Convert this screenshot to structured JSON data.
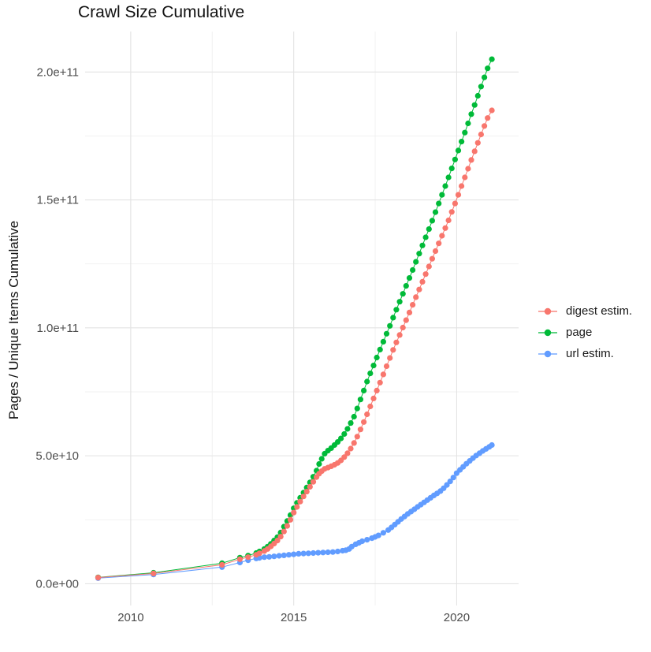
{
  "chart_data": {
    "type": "scatter",
    "title": "Crawl Size Cumulative",
    "xlabel": "",
    "ylabel": "Pages / Unique Items Cumulative",
    "grid": "major+minor",
    "legend_position": "right",
    "x_axis": {
      "domain": [
        2008.6,
        2021.9
      ],
      "ticks": [
        {
          "value": 2010,
          "label": "2010"
        },
        {
          "value": 2015,
          "label": "2015"
        },
        {
          "value": 2020,
          "label": "2020"
        }
      ],
      "minor": [
        2012.5,
        2017.5
      ]
    },
    "y_axis": {
      "domain": [
        -8500000000.0,
        215800000000.0
      ],
      "ticks": [
        {
          "value": 0,
          "label": "0.0e+00"
        },
        {
          "value": 50000000000.0,
          "label": "5.0e+10"
        },
        {
          "value": 100000000000.0,
          "label": "1.0e+11"
        },
        {
          "value": 150000000000.0,
          "label": "1.5e+11"
        },
        {
          "value": 200000000000.0,
          "label": "2.0e+11"
        }
      ],
      "minor": [
        25000000000.0,
        75000000000.0,
        125000000000.0,
        175000000000.0
      ]
    },
    "colors": {
      "grid_major": "#e3e3e3",
      "grid_minor": "#f0f0f0",
      "axis_text": "#4d4d4d",
      "title_text": "#111111"
    },
    "draw_order": [
      1,
      2,
      0
    ],
    "series": [
      {
        "name": "digest estim.",
        "color": "#F8766D",
        "points": [
          [
            2009.0,
            2400000000.0
          ],
          [
            2010.7,
            4000000000.0
          ],
          [
            2012.8,
            7400000000.0
          ],
          [
            2013.35,
            9600000000.0
          ],
          [
            2013.6,
            10400000000.0
          ],
          [
            2013.85,
            11300000000.0
          ],
          [
            2013.95,
            11900000000.0
          ],
          [
            2014.1,
            12800000000.0
          ],
          [
            2014.2,
            13600000000.0
          ],
          [
            2014.3,
            14600000000.0
          ],
          [
            2014.4,
            15700000000.0
          ],
          [
            2014.5,
            16900000000.0
          ],
          [
            2014.6,
            18400000000.0
          ],
          [
            2014.7,
            20400000000.0
          ],
          [
            2014.8,
            22600000000.0
          ],
          [
            2014.9,
            25000000000.0
          ],
          [
            2015.0,
            27800000000.0
          ],
          [
            2015.1,
            30000000000.0
          ],
          [
            2015.2,
            32100000000.0
          ],
          [
            2015.3,
            34100000000.0
          ],
          [
            2015.4,
            36000000000.0
          ],
          [
            2015.5,
            37900000000.0
          ],
          [
            2015.6,
            39800000000.0
          ],
          [
            2015.7,
            41700000000.0
          ],
          [
            2015.78,
            43000000000.0
          ],
          [
            2015.86,
            44000000000.0
          ],
          [
            2015.95,
            44900000000.0
          ],
          [
            2016.05,
            45400000000.0
          ],
          [
            2016.15,
            45900000000.0
          ],
          [
            2016.25,
            46500000000.0
          ],
          [
            2016.35,
            47200000000.0
          ],
          [
            2016.45,
            48200000000.0
          ],
          [
            2016.55,
            49500000000.0
          ],
          [
            2016.65,
            51000000000.0
          ],
          [
            2016.75,
            52800000000.0
          ],
          [
            2016.85,
            55000000000.0
          ],
          [
            2016.95,
            57500000000.0
          ],
          [
            2017.05,
            60300000000.0
          ],
          [
            2017.15,
            63200000000.0
          ],
          [
            2017.25,
            66200000000.0
          ],
          [
            2017.35,
            69300000000.0
          ],
          [
            2017.45,
            72400000000.0
          ],
          [
            2017.55,
            75500000000.0
          ],
          [
            2017.65,
            78600000000.0
          ],
          [
            2017.75,
            81800000000.0
          ],
          [
            2017.85,
            85000000000.0
          ],
          [
            2017.95,
            88200000000.0
          ],
          [
            2018.05,
            91400000000.0
          ],
          [
            2018.15,
            94300000000.0
          ],
          [
            2018.25,
            97200000000.0
          ],
          [
            2018.35,
            100100000000.0
          ],
          [
            2018.45,
            103000000000.0
          ],
          [
            2018.55,
            106000000000.0
          ],
          [
            2018.65,
            109000000000.0
          ],
          [
            2018.75,
            112000000000.0
          ],
          [
            2018.85,
            115000000000.0
          ],
          [
            2018.95,
            118000000000.0
          ],
          [
            2019.05,
            121000000000.0
          ],
          [
            2019.15,
            124000000000.0
          ],
          [
            2019.25,
            127000000000.0
          ],
          [
            2019.35,
            130000000000.0
          ],
          [
            2019.45,
            133000000000.0
          ],
          [
            2019.55,
            136000000000.0
          ],
          [
            2019.65,
            139000000000.0
          ],
          [
            2019.75,
            142000000000.0
          ],
          [
            2019.85,
            145300000000.0
          ],
          [
            2019.95,
            148600000000.0
          ],
          [
            2020.05,
            152000000000.0
          ],
          [
            2020.15,
            155400000000.0
          ],
          [
            2020.25,
            158800000000.0
          ],
          [
            2020.35,
            162200000000.0
          ],
          [
            2020.45,
            165600000000.0
          ],
          [
            2020.55,
            169000000000.0
          ],
          [
            2020.65,
            172300000000.0
          ],
          [
            2020.75,
            175600000000.0
          ],
          [
            2020.85,
            178900000000.0
          ],
          [
            2020.95,
            182000000000.0
          ],
          [
            2021.08,
            185000000000.0
          ]
        ]
      },
      {
        "name": "page",
        "color": "#00BA38",
        "points": [
          [
            2009.0,
            2500000000.0
          ],
          [
            2010.7,
            4300000000.0
          ],
          [
            2012.8,
            8000000000.0
          ],
          [
            2013.35,
            10200000000.0
          ],
          [
            2013.6,
            11000000000.0
          ],
          [
            2013.85,
            12000000000.0
          ],
          [
            2013.95,
            12600000000.0
          ],
          [
            2014.1,
            13600000000.0
          ],
          [
            2014.2,
            14500000000.0
          ],
          [
            2014.3,
            15600000000.0
          ],
          [
            2014.4,
            16900000000.0
          ],
          [
            2014.5,
            18200000000.0
          ],
          [
            2014.6,
            20000000000.0
          ],
          [
            2014.7,
            22300000000.0
          ],
          [
            2014.8,
            24500000000.0
          ],
          [
            2014.9,
            26800000000.0
          ],
          [
            2015.0,
            29500000000.0
          ],
          [
            2015.1,
            31600000000.0
          ],
          [
            2015.2,
            33600000000.0
          ],
          [
            2015.3,
            35600000000.0
          ],
          [
            2015.4,
            37600000000.0
          ],
          [
            2015.5,
            39600000000.0
          ],
          [
            2015.6,
            41800000000.0
          ],
          [
            2015.7,
            44200000000.0
          ],
          [
            2015.78,
            46800000000.0
          ],
          [
            2015.86,
            48800000000.0
          ],
          [
            2015.95,
            50800000000.0
          ],
          [
            2016.05,
            52000000000.0
          ],
          [
            2016.15,
            53000000000.0
          ],
          [
            2016.25,
            54200000000.0
          ],
          [
            2016.35,
            55400000000.0
          ],
          [
            2016.45,
            56800000000.0
          ],
          [
            2016.55,
            58500000000.0
          ],
          [
            2016.65,
            60500000000.0
          ],
          [
            2016.75,
            62800000000.0
          ],
          [
            2016.85,
            65300000000.0
          ],
          [
            2016.95,
            68500000000.0
          ],
          [
            2017.05,
            72000000000.0
          ],
          [
            2017.15,
            75500000000.0
          ],
          [
            2017.25,
            79000000000.0
          ],
          [
            2017.35,
            82200000000.0
          ],
          [
            2017.45,
            85300000000.0
          ],
          [
            2017.55,
            88400000000.0
          ],
          [
            2017.65,
            91500000000.0
          ],
          [
            2017.75,
            94600000000.0
          ],
          [
            2017.85,
            97700000000.0
          ],
          [
            2017.95,
            100800000000.0
          ],
          [
            2018.05,
            104000000000.0
          ],
          [
            2018.15,
            107100000000.0
          ],
          [
            2018.25,
            110200000000.0
          ],
          [
            2018.35,
            113300000000.0
          ],
          [
            2018.45,
            116400000000.0
          ],
          [
            2018.55,
            119500000000.0
          ],
          [
            2018.65,
            122600000000.0
          ],
          [
            2018.75,
            125800000000.0
          ],
          [
            2018.85,
            129000000000.0
          ],
          [
            2018.95,
            132200000000.0
          ],
          [
            2019.05,
            135400000000.0
          ],
          [
            2019.15,
            138600000000.0
          ],
          [
            2019.25,
            141900000000.0
          ],
          [
            2019.35,
            145200000000.0
          ],
          [
            2019.45,
            148600000000.0
          ],
          [
            2019.55,
            152000000000.0
          ],
          [
            2019.65,
            155400000000.0
          ],
          [
            2019.75,
            158800000000.0
          ],
          [
            2019.85,
            162300000000.0
          ],
          [
            2019.95,
            165800000000.0
          ],
          [
            2020.05,
            169300000000.0
          ],
          [
            2020.15,
            172800000000.0
          ],
          [
            2020.25,
            176300000000.0
          ],
          [
            2020.35,
            179900000000.0
          ],
          [
            2020.45,
            183500000000.0
          ],
          [
            2020.55,
            187100000000.0
          ],
          [
            2020.65,
            190700000000.0
          ],
          [
            2020.75,
            194300000000.0
          ],
          [
            2020.85,
            197900000000.0
          ],
          [
            2020.95,
            201400000000.0
          ],
          [
            2021.08,
            205000000000.0
          ]
        ]
      },
      {
        "name": "url estim.",
        "color": "#619CFF",
        "points": [
          [
            2009.0,
            2200000000.0
          ],
          [
            2010.7,
            3600000000.0
          ],
          [
            2012.8,
            6500000000.0
          ],
          [
            2013.35,
            8300000000.0
          ],
          [
            2013.6,
            9200000000.0
          ],
          [
            2013.85,
            9900000000.0
          ],
          [
            2013.95,
            10100000000.0
          ],
          [
            2014.1,
            10400000000.0
          ],
          [
            2014.25,
            10500000000.0
          ],
          [
            2014.4,
            10700000000.0
          ],
          [
            2014.55,
            10900000000.0
          ],
          [
            2014.7,
            11100000000.0
          ],
          [
            2014.85,
            11300000000.0
          ],
          [
            2015.0,
            11500000000.0
          ],
          [
            2015.15,
            11700000000.0
          ],
          [
            2015.3,
            11800000000.0
          ],
          [
            2015.45,
            11900000000.0
          ],
          [
            2015.6,
            12000000000.0
          ],
          [
            2015.75,
            12100000000.0
          ],
          [
            2015.9,
            12200000000.0
          ],
          [
            2016.05,
            12300000000.0
          ],
          [
            2016.2,
            12400000000.0
          ],
          [
            2016.35,
            12600000000.0
          ],
          [
            2016.5,
            12900000000.0
          ],
          [
            2016.6,
            13100000000.0
          ],
          [
            2016.7,
            13600000000.0
          ],
          [
            2016.78,
            14500000000.0
          ],
          [
            2016.9,
            15400000000.0
          ],
          [
            2017.0,
            16000000000.0
          ],
          [
            2017.1,
            16600000000.0
          ],
          [
            2017.25,
            17200000000.0
          ],
          [
            2017.4,
            17800000000.0
          ],
          [
            2017.5,
            18300000000.0
          ],
          [
            2017.6,
            18900000000.0
          ],
          [
            2017.75,
            19900000000.0
          ],
          [
            2017.9,
            21000000000.0
          ],
          [
            2018.0,
            22000000000.0
          ],
          [
            2018.1,
            23100000000.0
          ],
          [
            2018.2,
            24200000000.0
          ],
          [
            2018.3,
            25300000000.0
          ],
          [
            2018.4,
            26300000000.0
          ],
          [
            2018.5,
            27300000000.0
          ],
          [
            2018.6,
            28200000000.0
          ],
          [
            2018.7,
            29100000000.0
          ],
          [
            2018.8,
            30000000000.0
          ],
          [
            2018.9,
            30900000000.0
          ],
          [
            2019.0,
            31800000000.0
          ],
          [
            2019.1,
            32700000000.0
          ],
          [
            2019.2,
            33600000000.0
          ],
          [
            2019.3,
            34500000000.0
          ],
          [
            2019.4,
            35300000000.0
          ],
          [
            2019.5,
            36200000000.0
          ],
          [
            2019.6,
            37300000000.0
          ],
          [
            2019.7,
            38600000000.0
          ],
          [
            2019.8,
            40000000000.0
          ],
          [
            2019.9,
            41500000000.0
          ],
          [
            2020.0,
            43200000000.0
          ],
          [
            2020.1,
            44500000000.0
          ],
          [
            2020.2,
            45700000000.0
          ],
          [
            2020.3,
            46900000000.0
          ],
          [
            2020.4,
            48000000000.0
          ],
          [
            2020.5,
            49100000000.0
          ],
          [
            2020.6,
            50100000000.0
          ],
          [
            2020.7,
            51000000000.0
          ],
          [
            2020.8,
            51900000000.0
          ],
          [
            2020.9,
            52700000000.0
          ],
          [
            2021.0,
            53500000000.0
          ],
          [
            2021.08,
            54200000000.0
          ]
        ]
      }
    ]
  }
}
